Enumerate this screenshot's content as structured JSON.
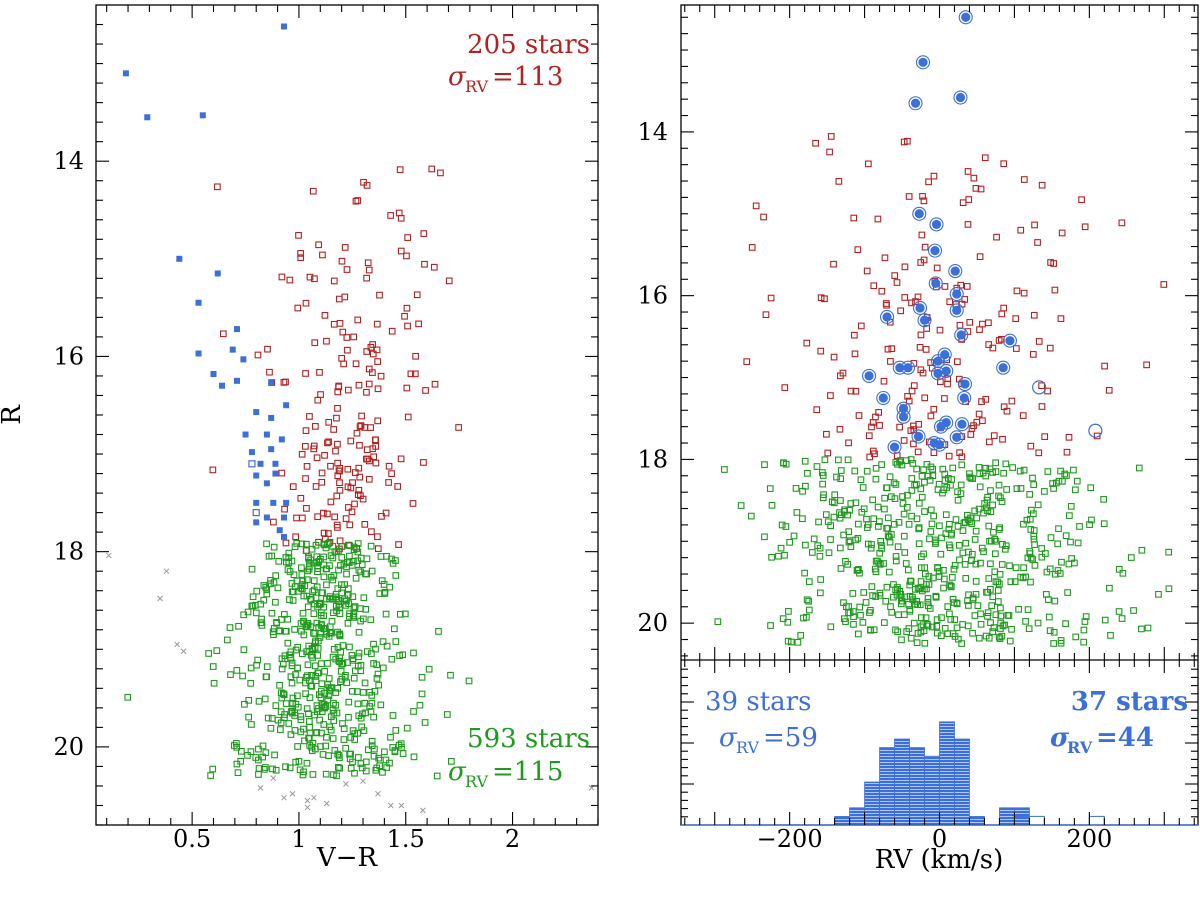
{
  "colors": {
    "red_giants": "#b22222",
    "dwarfs": "#1f9a1f",
    "blue": "#3b6fd9",
    "rejected": "#999999",
    "axis": "#000000"
  },
  "chart_data": [
    {
      "type": "scatter",
      "name": "color-magnitude diagram",
      "xlabel": "V−R",
      "ylabel": "R",
      "xlim": [
        0.05,
        2.4
      ],
      "ylim": [
        20.8,
        12.4
      ],
      "xticks": [
        "0.5",
        "1",
        "1.5",
        "2"
      ],
      "xtick_values": [
        0.5,
        1,
        1.5,
        2
      ],
      "yticks": [
        "14",
        "16",
        "18",
        "20"
      ],
      "ytick_values": [
        14,
        16,
        18,
        20
      ],
      "annotations": {
        "upper": {
          "count": "205 stars",
          "sigma_symbol": "σ",
          "sigma_sub": "RV",
          "sigma_value": "=113"
        },
        "lower": {
          "count": "593 stars",
          "sigma_symbol": "σ",
          "sigma_sub": "RV",
          "sigma_value": "=115"
        }
      },
      "series": [
        {
          "name": "blue filled",
          "marker": "filled-square",
          "color_key": "blue",
          "points": [
            [
              0.93,
              12.62
            ],
            [
              0.19,
              13.1
            ],
            [
              0.29,
              13.55
            ],
            [
              0.55,
              13.53
            ],
            [
              0.44,
              15.0
            ],
            [
              0.62,
              15.15
            ],
            [
              0.53,
              15.45
            ],
            [
              0.71,
              15.72
            ],
            [
              0.53,
              15.97
            ],
            [
              0.69,
              15.93
            ],
            [
              0.74,
              16.03
            ],
            [
              0.6,
              16.18
            ],
            [
              0.64,
              16.3
            ],
            [
              0.71,
              16.25
            ],
            [
              0.87,
              16.27
            ],
            [
              0.8,
              16.57
            ],
            [
              0.87,
              16.63
            ],
            [
              0.94,
              16.5
            ],
            [
              0.75,
              16.8
            ],
            [
              0.85,
              16.8
            ],
            [
              0.92,
              16.85
            ],
            [
              0.78,
              16.98
            ],
            [
              0.87,
              16.95
            ],
            [
              0.82,
              17.1
            ],
            [
              0.89,
              17.1
            ],
            [
              0.8,
              17.22
            ],
            [
              0.89,
              17.2
            ],
            [
              0.85,
              17.3
            ],
            [
              0.8,
              17.5
            ],
            [
              0.88,
              17.5
            ],
            [
              0.94,
              17.5
            ],
            [
              0.85,
              17.65
            ],
            [
              0.8,
              17.7
            ],
            [
              0.93,
              17.65
            ],
            [
              0.91,
              17.78
            ],
            [
              0.93,
              17.85
            ]
          ]
        },
        {
          "name": "blue open",
          "marker": "open-square",
          "color_key": "blue",
          "points": [
            [
              0.78,
              17.1
            ],
            [
              0.8,
              17.6
            ]
          ]
        },
        {
          "name": "rejected",
          "marker": "cross",
          "color_key": "rejected",
          "points": [
            [
              0.11,
              18.04
            ],
            [
              0.38,
              18.2
            ],
            [
              0.35,
              18.48
            ],
            [
              0.43,
              18.95
            ],
            [
              0.46,
              19.02
            ],
            [
              0.82,
              20.42
            ],
            [
              0.88,
              20.32
            ],
            [
              0.93,
              20.52
            ],
            [
              0.97,
              20.48
            ],
            [
              1.04,
              20.55
            ],
            [
              1.07,
              20.52
            ],
            [
              1.13,
              20.58
            ],
            [
              1.3,
              20.35
            ],
            [
              1.37,
              20.48
            ],
            [
              1.43,
              20.6
            ],
            [
              1.48,
              20.6
            ],
            [
              1.58,
              20.65
            ],
            [
              2.37,
              20.42
            ],
            [
              1.04,
              20.62
            ],
            [
              1.22,
              20.38
            ]
          ]
        }
      ]
    },
    {
      "type": "scatter",
      "name": "R vs radial velocity",
      "xlabel": "RV (km/s)",
      "ylabel": "",
      "xlim": [
        -345,
        345
      ],
      "ylim": [
        20.45,
        12.45
      ],
      "xticks": [
        "−200",
        "0",
        "200"
      ],
      "xtick_values": [
        -200,
        0,
        200
      ],
      "yticks": [
        "14",
        "16",
        "18",
        "20"
      ],
      "ytick_values": [
        14,
        16,
        18,
        20
      ],
      "series": [
        {
          "name": "blue members",
          "marker": "filled-circle",
          "color_key": "blue",
          "points": [
            [
              35,
              12.6
            ],
            [
              -22,
              13.15
            ],
            [
              28,
              13.58
            ],
            [
              -32,
              13.65
            ],
            [
              -27,
              15.0
            ],
            [
              -4,
              15.13
            ],
            [
              -6,
              15.45
            ],
            [
              21,
              15.7
            ],
            [
              -5,
              15.85
            ],
            [
              23,
              15.98
            ],
            [
              -26,
              16.15
            ],
            [
              23,
              16.18
            ],
            [
              -70,
              16.26
            ],
            [
              -20,
              16.3
            ],
            [
              29,
              16.48
            ],
            [
              94,
              16.55
            ],
            [
              7,
              16.72
            ],
            [
              -2,
              16.8
            ],
            [
              -53,
              16.88
            ],
            [
              -42,
              16.88
            ],
            [
              -2,
              16.95
            ],
            [
              9,
              16.92
            ],
            [
              85,
              16.88
            ],
            [
              -94,
              16.98
            ],
            [
              34,
              17.08
            ],
            [
              33,
              17.25
            ],
            [
              -75,
              17.25
            ],
            [
              -48,
              17.38
            ],
            [
              -48,
              17.48
            ],
            [
              9,
              17.55
            ],
            [
              2,
              17.6
            ],
            [
              30,
              17.57
            ],
            [
              -28,
              17.72
            ],
            [
              23,
              17.73
            ],
            [
              -7,
              17.8
            ],
            [
              -60,
              17.85
            ],
            [
              0,
              17.82
            ]
          ]
        },
        {
          "name": "blue open",
          "marker": "open-circle",
          "color_key": "blue",
          "points": [
            [
              133,
              17.12
            ],
            [
              208,
              17.65
            ]
          ]
        }
      ]
    },
    {
      "type": "bar",
      "name": "RV histogram",
      "xlim": [
        -345,
        345
      ],
      "bin_width": 20,
      "bins_left_edges": [
        -140,
        -120,
        -100,
        -80,
        -60,
        -40,
        -20,
        0,
        20,
        40,
        60,
        80,
        100,
        120,
        140,
        160,
        180,
        200
      ],
      "filled_counts": [
        1,
        2,
        5,
        9,
        10,
        9,
        8,
        12,
        10,
        1,
        0,
        2,
        2,
        0,
        0,
        0,
        0,
        0
      ],
      "open_counts": [
        0,
        0,
        0,
        0,
        0,
        0,
        0,
        0,
        0,
        0,
        0,
        0,
        1,
        1,
        0,
        0,
        0,
        1
      ],
      "annotations": {
        "left": {
          "count": "39 stars",
          "sigma_symbol": "σ",
          "sigma_sub": "RV",
          "sigma_value": "=59"
        },
        "right": {
          "count": "37 stars",
          "sigma_symbol": "σ",
          "sigma_sub": "RV",
          "sigma_value": "=44"
        }
      }
    }
  ]
}
